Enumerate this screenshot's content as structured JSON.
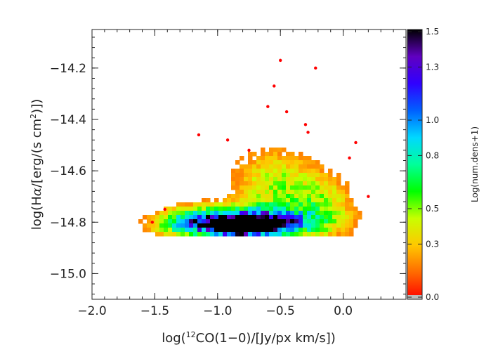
{
  "chart_data": {
    "type": "heatmap",
    "title": "",
    "xlabel": "log(12CO(1-0)/[Jy/px km/s])",
    "ylabel": "log(Hα/[erg/(s cm2)])",
    "xlim": [
      -2.0,
      0.5
    ],
    "ylim": [
      -15.1,
      -14.05
    ],
    "xticks": [
      -2.0,
      -1.5,
      -1.0,
      -0.5,
      0.0
    ],
    "xtick_labels": [
      "−2.0",
      "−1.5",
      "−1.0",
      "−0.5",
      "0.0"
    ],
    "yticks": [
      -14.2,
      -14.4,
      -14.6,
      -14.8,
      -15.0
    ],
    "ytick_labels": [
      "−14.2",
      "−14.4",
      "−14.6",
      "−14.8",
      "−15.0"
    ],
    "grid": false,
    "colorbar": {
      "label": "Log(num.dens+1)",
      "range": [
        0.0,
        1.5
      ],
      "ticks": [
        0.0,
        0.3,
        0.5,
        0.8,
        1.0,
        1.3,
        1.5
      ],
      "tick_labels": [
        "0.0",
        "0.3",
        "0.5",
        "0.8",
        "1.0",
        "1.3",
        "1.5"
      ],
      "colors": [
        "#ff0000",
        "#ff6a00",
        "#ffc800",
        "#c8ff00",
        "#00ff00",
        "#00ff9a",
        "#00d8ff",
        "#0060ff",
        "#3000ff",
        "#6000c0",
        "#000000"
      ]
    },
    "density_blobs": [
      {
        "x": -0.75,
        "y": -14.805,
        "sx": 0.42,
        "sy": 0.045,
        "amp": 1.0
      },
      {
        "x": -0.75,
        "y": -14.8,
        "sx": 0.22,
        "sy": 0.022,
        "amp": 1.15
      },
      {
        "x": -0.85,
        "y": -14.825,
        "sx": 0.08,
        "sy": 0.015,
        "amp": 1.35
      },
      {
        "x": -0.62,
        "y": -14.815,
        "sx": 0.07,
        "sy": 0.014,
        "amp": 1.25
      },
      {
        "x": -0.55,
        "y": -14.65,
        "sx": 0.25,
        "sy": 0.1,
        "amp": 0.45
      },
      {
        "x": -0.15,
        "y": -14.72,
        "sx": 0.18,
        "sy": 0.08,
        "amp": 0.35
      },
      {
        "x": -1.2,
        "y": -14.8,
        "sx": 0.2,
        "sy": 0.04,
        "amp": 0.5
      }
    ],
    "scatter_points": [
      {
        "x": -0.5,
        "y": -14.17
      },
      {
        "x": -0.55,
        "y": -14.27
      },
      {
        "x": -0.6,
        "y": -14.35
      },
      {
        "x": -0.22,
        "y": -14.2
      },
      {
        "x": -0.45,
        "y": -14.37
      },
      {
        "x": -0.3,
        "y": -14.42
      },
      {
        "x": -1.15,
        "y": -14.46
      },
      {
        "x": -0.92,
        "y": -14.48
      },
      {
        "x": 0.1,
        "y": -14.49
      },
      {
        "x": 0.05,
        "y": -14.55
      },
      {
        "x": -1.52,
        "y": -14.8
      },
      {
        "x": -1.42,
        "y": -14.75
      },
      {
        "x": 0.2,
        "y": -14.7
      },
      {
        "x": -0.28,
        "y": -14.45
      },
      {
        "x": -0.75,
        "y": -14.52
      }
    ]
  }
}
